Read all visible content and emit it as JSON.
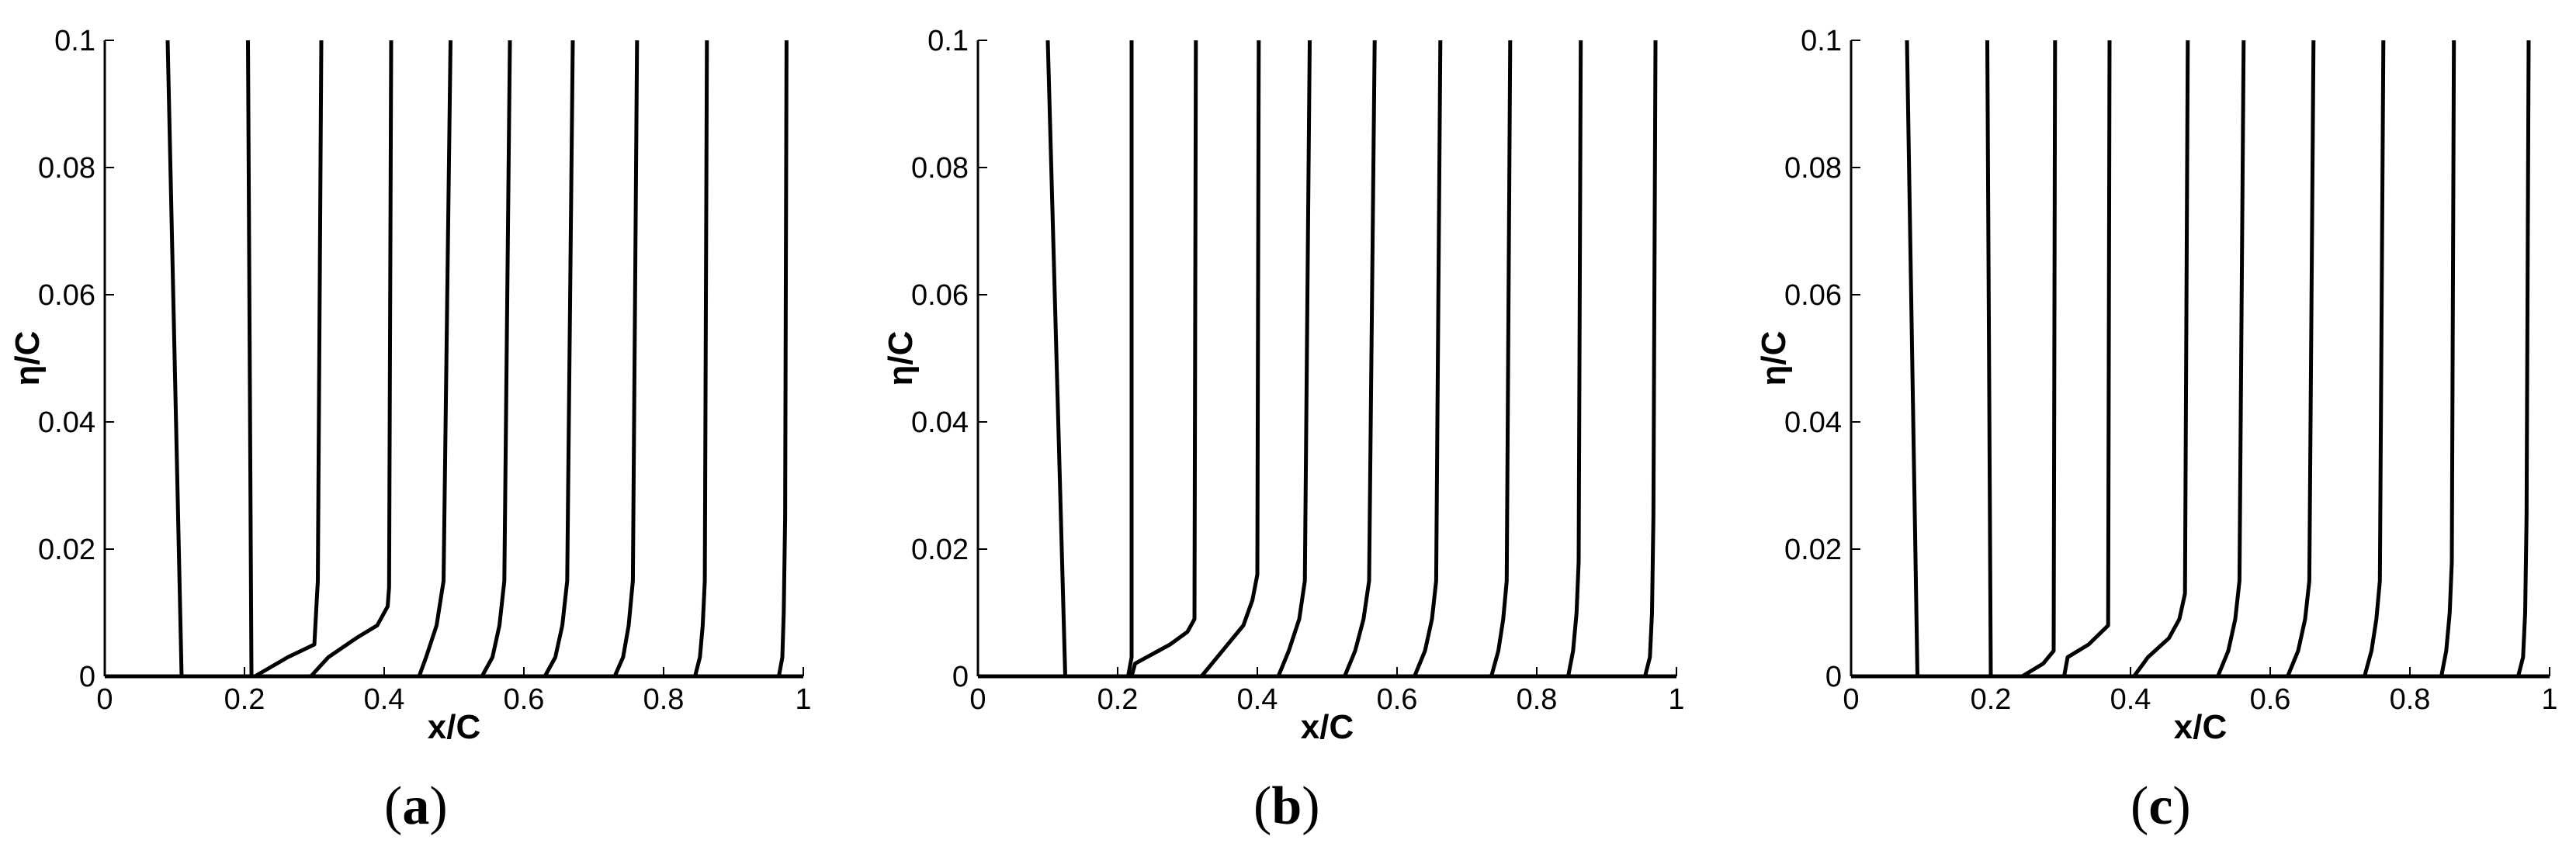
{
  "chart_data": [
    {
      "type": "line",
      "panel_label_open": "(",
      "panel_label_letter": "a",
      "panel_label_close": ")",
      "xlabel": "x/C",
      "ylabel": "η/C",
      "xlim": [
        0,
        1
      ],
      "ylim": [
        0,
        0.1
      ],
      "x_ticks": [
        "0",
        "0.2",
        "0.4",
        "0.6",
        "0.8",
        "1"
      ],
      "y_ticks": [
        "0",
        "0.02",
        "0.04",
        "0.06",
        "0.08",
        "0.1"
      ],
      "grid": false,
      "series": [
        {
          "points": [
            [
              0.11,
              0
            ],
            [
              0.09,
              0.1
            ]
          ]
        },
        {
          "points": [
            [
              0.21,
              0
            ],
            [
              0.205,
              0.1
            ]
          ]
        },
        {
          "points": [
            [
              0.215,
              0
            ],
            [
              0.262,
              0.003
            ],
            [
              0.3,
              0.005
            ],
            [
              0.305,
              0.015
            ],
            [
              0.31,
              0.1
            ]
          ]
        },
        {
          "points": [
            [
              0.295,
              0
            ],
            [
              0.32,
              0.003
            ],
            [
              0.36,
              0.006
            ],
            [
              0.39,
              0.008
            ],
            [
              0.405,
              0.011
            ],
            [
              0.407,
              0.014
            ],
            [
              0.41,
              0.1
            ]
          ]
        },
        {
          "points": [
            [
              0.45,
              0
            ],
            [
              0.46,
              0.003
            ],
            [
              0.475,
              0.008
            ],
            [
              0.485,
              0.015
            ],
            [
              0.495,
              0.1
            ]
          ]
        },
        {
          "points": [
            [
              0.54,
              0
            ],
            [
              0.555,
              0.003
            ],
            [
              0.565,
              0.008
            ],
            [
              0.572,
              0.015
            ],
            [
              0.58,
              0.1
            ]
          ]
        },
        {
          "points": [
            [
              0.63,
              0
            ],
            [
              0.645,
              0.003
            ],
            [
              0.655,
              0.008
            ],
            [
              0.662,
              0.015
            ],
            [
              0.67,
              0.1
            ]
          ]
        },
        {
          "points": [
            [
              0.73,
              0
            ],
            [
              0.742,
              0.003
            ],
            [
              0.75,
              0.008
            ],
            [
              0.756,
              0.015
            ],
            [
              0.762,
              0.1
            ]
          ]
        },
        {
          "points": [
            [
              0.845,
              0
            ],
            [
              0.852,
              0.003
            ],
            [
              0.856,
              0.008
            ],
            [
              0.859,
              0.015
            ],
            [
              0.862,
              0.1
            ]
          ]
        },
        {
          "points": [
            [
              0.965,
              0
            ],
            [
              0.97,
              0.003
            ],
            [
              0.972,
              0.01
            ],
            [
              0.974,
              0.025
            ],
            [
              0.976,
              0.1
            ]
          ]
        }
      ]
    },
    {
      "type": "line",
      "panel_label_open": "(",
      "panel_label_letter": "b",
      "panel_label_close": ")",
      "xlabel": "x/C",
      "ylabel": "η/C",
      "xlim": [
        0,
        1
      ],
      "ylim": [
        0,
        0.1
      ],
      "x_ticks": [
        "0",
        "0.2",
        "0.4",
        "0.6",
        "0.8",
        "1"
      ],
      "y_ticks": [
        "0",
        "0.02",
        "0.04",
        "0.06",
        "0.08",
        "0.1"
      ],
      "grid": false,
      "series": [
        {
          "points": [
            [
              0.125,
              0
            ],
            [
              0.1,
              0.1
            ]
          ]
        },
        {
          "points": [
            [
              0.215,
              0
            ],
            [
              0.22,
              0.003
            ],
            [
              0.22,
              0.1
            ]
          ]
        },
        {
          "points": [
            [
              0.22,
              0
            ],
            [
              0.225,
              0.002
            ],
            [
              0.275,
              0.005
            ],
            [
              0.3,
              0.007
            ],
            [
              0.31,
              0.009
            ],
            [
              0.312,
              0.1
            ]
          ]
        },
        {
          "points": [
            [
              0.32,
              0
            ],
            [
              0.35,
              0.004
            ],
            [
              0.38,
              0.008
            ],
            [
              0.393,
              0.012
            ],
            [
              0.4,
              0.016
            ],
            [
              0.402,
              0.1
            ]
          ]
        },
        {
          "points": [
            [
              0.43,
              0
            ],
            [
              0.445,
              0.004
            ],
            [
              0.46,
              0.009
            ],
            [
              0.468,
              0.015
            ],
            [
              0.475,
              0.1
            ]
          ]
        },
        {
          "points": [
            [
              0.525,
              0
            ],
            [
              0.54,
              0.004
            ],
            [
              0.552,
              0.009
            ],
            [
              0.56,
              0.015
            ],
            [
              0.568,
              0.1
            ]
          ]
        },
        {
          "points": [
            [
              0.625,
              0
            ],
            [
              0.64,
              0.004
            ],
            [
              0.65,
              0.009
            ],
            [
              0.656,
              0.015
            ],
            [
              0.662,
              0.1
            ]
          ]
        },
        {
          "points": [
            [
              0.735,
              0
            ],
            [
              0.745,
              0.004
            ],
            [
              0.752,
              0.009
            ],
            [
              0.757,
              0.015
            ],
            [
              0.762,
              0.1
            ]
          ]
        },
        {
          "points": [
            [
              0.845,
              0
            ],
            [
              0.852,
              0.004
            ],
            [
              0.857,
              0.01
            ],
            [
              0.86,
              0.018
            ],
            [
              0.863,
              0.1
            ]
          ]
        },
        {
          "points": [
            [
              0.955,
              0
            ],
            [
              0.962,
              0.003
            ],
            [
              0.965,
              0.01
            ],
            [
              0.967,
              0.025
            ],
            [
              0.97,
              0.1
            ]
          ]
        }
      ]
    },
    {
      "type": "line",
      "panel_label_open": "(",
      "panel_label_letter": "c",
      "panel_label_close": ")",
      "xlabel": "x/C",
      "ylabel": "η/C",
      "xlim": [
        0,
        1
      ],
      "ylim": [
        0,
        0.1
      ],
      "x_ticks": [
        "0",
        "0.2",
        "0.4",
        "0.6",
        "0.8",
        "1"
      ],
      "y_ticks": [
        "0",
        "0.02",
        "0.04",
        "0.06",
        "0.08",
        "0.1"
      ],
      "grid": false,
      "series": [
        {
          "points": [
            [
              0.095,
              0
            ],
            [
              0.08,
              0.1
            ]
          ]
        },
        {
          "points": [
            [
              0.2,
              0
            ],
            [
              0.195,
              0.1
            ]
          ]
        },
        {
          "points": [
            [
              0.245,
              0
            ],
            [
              0.275,
              0.002
            ],
            [
              0.29,
              0.004
            ],
            [
              0.292,
              0.1
            ]
          ]
        },
        {
          "points": [
            [
              0.305,
              0
            ],
            [
              0.31,
              0.003
            ],
            [
              0.34,
              0.005
            ],
            [
              0.368,
              0.008
            ],
            [
              0.37,
              0.1
            ]
          ]
        },
        {
          "points": [
            [
              0.405,
              0
            ],
            [
              0.425,
              0.003
            ],
            [
              0.455,
              0.006
            ],
            [
              0.47,
              0.009
            ],
            [
              0.478,
              0.013
            ],
            [
              0.482,
              0.1
            ]
          ]
        },
        {
          "points": [
            [
              0.525,
              0
            ],
            [
              0.54,
              0.004
            ],
            [
              0.55,
              0.009
            ],
            [
              0.556,
              0.015
            ],
            [
              0.562,
              0.1
            ]
          ]
        },
        {
          "points": [
            [
              0.625,
              0
            ],
            [
              0.64,
              0.004
            ],
            [
              0.65,
              0.009
            ],
            [
              0.656,
              0.015
            ],
            [
              0.662,
              0.1
            ]
          ]
        },
        {
          "points": [
            [
              0.735,
              0
            ],
            [
              0.745,
              0.004
            ],
            [
              0.752,
              0.009
            ],
            [
              0.757,
              0.015
            ],
            [
              0.762,
              0.1
            ]
          ]
        },
        {
          "points": [
            [
              0.845,
              0
            ],
            [
              0.852,
              0.004
            ],
            [
              0.857,
              0.01
            ],
            [
              0.86,
              0.018
            ],
            [
              0.863,
              0.1
            ]
          ]
        },
        {
          "points": [
            [
              0.955,
              0
            ],
            [
              0.962,
              0.003
            ],
            [
              0.965,
              0.01
            ],
            [
              0.967,
              0.025
            ],
            [
              0.97,
              0.1
            ]
          ]
        }
      ]
    }
  ]
}
